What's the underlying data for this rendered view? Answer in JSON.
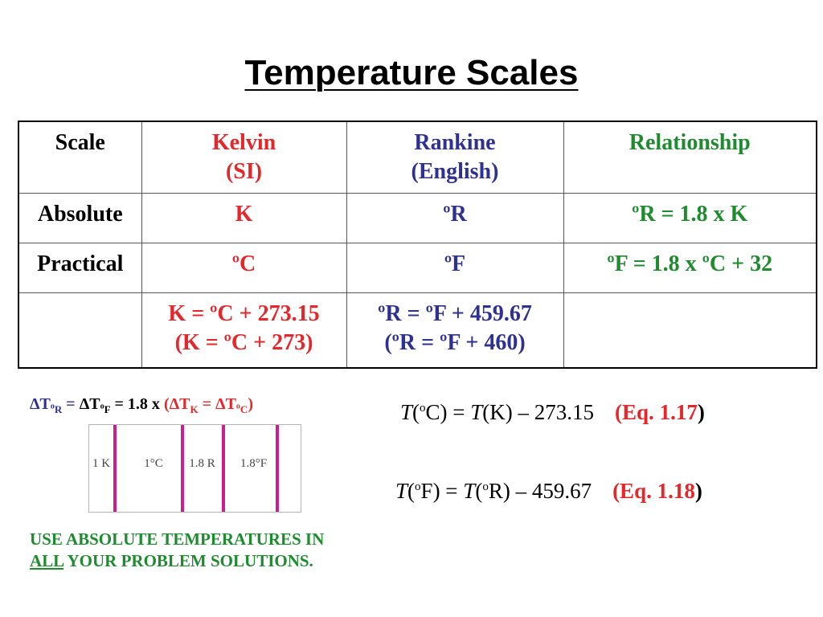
{
  "title": "Temperature Scales",
  "table": {
    "header": {
      "scale": "Scale",
      "kelvin_line1": "Kelvin",
      "kelvin_line2": "(SI)",
      "rankine_line1": "Rankine",
      "rankine_line2": "(English)",
      "relationship": "Relationship"
    },
    "absolute": {
      "label": "Absolute",
      "kelvin": "K",
      "rankine": "ºR",
      "relationship": "ºR = 1.8 x K"
    },
    "practical": {
      "label": "Practical",
      "kelvin": "ºC",
      "rankine": "ºF",
      "relationship": "ºF = 1.8 x ºC + 32"
    },
    "conversion": {
      "label": "",
      "kelvin_line1": "K = ºC + 273.15",
      "kelvin_line2": "(K = ºC + 273)",
      "rankine_line1": "ºR = ºF + 459.67",
      "rankine_line2": "(ºR = ºF + 460)",
      "relationship": ""
    }
  },
  "delta": {
    "dT": "ΔT",
    "sub_R": "R",
    "sub_F": "F",
    "sub_K": "K",
    "sub_C": "C",
    "deg": "o",
    "eq": " = ",
    "factor": " = 1.8 x ",
    "open": "(",
    "close": ")"
  },
  "interval_strip": {
    "labels": [
      "1 K",
      "1°C",
      "1.8 R",
      "1.8°F"
    ]
  },
  "equations": {
    "eq1": {
      "t1": "T",
      "open1": "(",
      "deg1": "o",
      "unit1": "C",
      "mid": ") = ",
      "t2": "T",
      "rest": "(K) – 273.15",
      "ref_open": "(Eq. ",
      "ref_num": "1.17",
      "ref_close": ")"
    },
    "eq2": {
      "t1": "T",
      "open1": "(",
      "deg1": "o",
      "unit1": "F",
      "mid": ") = ",
      "t2": "T",
      "open2": "(",
      "deg2": "o",
      "rest": "R) – 459.67",
      "ref_open": "(Eq. ",
      "ref_num": "1.18",
      "ref_close": ")"
    }
  },
  "note": {
    "line1": "USE ABSOLUTE TEMPERATURES IN",
    "line2_underlined": "ALL",
    "line2_rest": " YOUR PROBLEM SOLUTIONS."
  },
  "colors": {
    "kelvin_red": "#e5262a",
    "rankine_blue": "#2e3192",
    "relationship_green": "#1e8b2e",
    "strip_bar_magenta": "#cc1f8f"
  }
}
